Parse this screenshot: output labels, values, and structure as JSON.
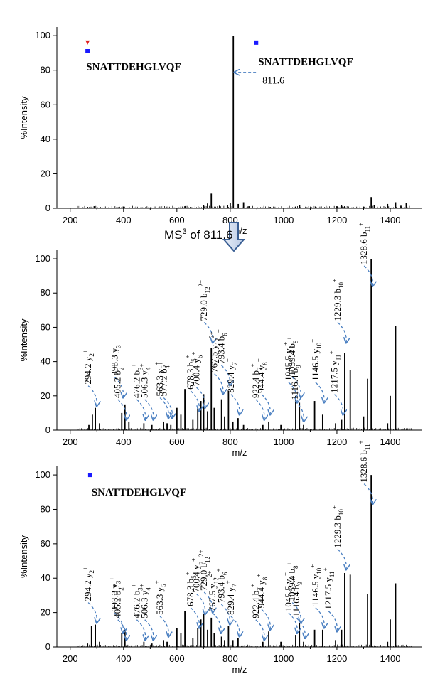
{
  "colors": {
    "arrow": "#4a7fc1",
    "bar": "#000000",
    "square": "#1a1aff",
    "triangle": "#e02020"
  },
  "ms3_label": {
    "prefix": "MS",
    "sup": "3",
    "suffix": " of 811.6"
  },
  "chart_data": [
    {
      "type": "bar",
      "xlabel": "m/z",
      "ylabel": "%Intensity",
      "xlim": [
        150,
        1520
      ],
      "ylim": [
        0,
        105
      ],
      "xticks": [
        200,
        400,
        600,
        800,
        1000,
        1200,
        1400
      ],
      "yticks": [
        0,
        20,
        40,
        60,
        80,
        100
      ],
      "peptide_labels": [
        {
          "text": "SNATTDEHGLVQF",
          "x": 260,
          "y": 80
        },
        {
          "text": "SNATTDEHGLVQF",
          "x": 905,
          "y": 83
        }
      ],
      "markers": [
        {
          "shape": "triangle",
          "x": 265,
          "y": 96
        },
        {
          "shape": "square",
          "x": 265,
          "y": 91
        },
        {
          "shape": "square",
          "x": 897,
          "y": 96
        }
      ],
      "precursor": {
        "text": "811.6",
        "x": 910,
        "y": 73
      },
      "peaks": [
        {
          "x": 265,
          "y": 0.8
        },
        {
          "x": 290,
          "y": 1.2
        },
        {
          "x": 380,
          "y": 0.6
        },
        {
          "x": 400,
          "y": 1.0
        },
        {
          "x": 560,
          "y": 0.7
        },
        {
          "x": 630,
          "y": 1.2
        },
        {
          "x": 700,
          "y": 2.0
        },
        {
          "x": 715,
          "y": 2.8
        },
        {
          "x": 729,
          "y": 8.5
        },
        {
          "x": 760,
          "y": 1.5
        },
        {
          "x": 790,
          "y": 2.0
        },
        {
          "x": 800,
          "y": 3.0
        },
        {
          "x": 811.6,
          "y": 100
        },
        {
          "x": 830,
          "y": 2.5
        },
        {
          "x": 850,
          "y": 3.5
        },
        {
          "x": 870,
          "y": 1.2
        },
        {
          "x": 950,
          "y": 0.8
        },
        {
          "x": 1045,
          "y": 1.0
        },
        {
          "x": 1060,
          "y": 1.8
        },
        {
          "x": 1120,
          "y": 0.8
        },
        {
          "x": 1200,
          "y": 1.2
        },
        {
          "x": 1217,
          "y": 2.0
        },
        {
          "x": 1229,
          "y": 1.2
        },
        {
          "x": 1300,
          "y": 1.0
        },
        {
          "x": 1328.6,
          "y": 6.5
        },
        {
          "x": 1340,
          "y": 2.0
        },
        {
          "x": 1390,
          "y": 2.5
        },
        {
          "x": 1420,
          "y": 3.5
        },
        {
          "x": 1440,
          "y": 1.5
        },
        {
          "x": 1460,
          "y": 3.0
        }
      ],
      "annotations": []
    },
    {
      "type": "bar",
      "xlabel": "m/z",
      "ylabel": "%Intensity",
      "xlim": [
        150,
        1520
      ],
      "ylim": [
        0,
        105
      ],
      "xticks": [
        200,
        400,
        600,
        800,
        1000,
        1200,
        1400
      ],
      "yticks": [
        0,
        20,
        40,
        60,
        80,
        100
      ],
      "peptide_labels": [],
      "markers": [],
      "precursor": null,
      "peaks": [
        {
          "x": 270,
          "y": 3
        },
        {
          "x": 283,
          "y": 9
        },
        {
          "x": 294.2,
          "y": 13
        },
        {
          "x": 310,
          "y": 4
        },
        {
          "x": 393.3,
          "y": 10
        },
        {
          "x": 405.2,
          "y": 15
        },
        {
          "x": 420,
          "y": 5
        },
        {
          "x": 476.2,
          "y": 4
        },
        {
          "x": 506.3,
          "y": 3
        },
        {
          "x": 550,
          "y": 5
        },
        {
          "x": 563.3,
          "y": 4
        },
        {
          "x": 577.2,
          "y": 3
        },
        {
          "x": 600,
          "y": 13
        },
        {
          "x": 615,
          "y": 9
        },
        {
          "x": 630,
          "y": 24
        },
        {
          "x": 660,
          "y": 6
        },
        {
          "x": 678.3,
          "y": 13
        },
        {
          "x": 690,
          "y": 17
        },
        {
          "x": 700.4,
          "y": 21
        },
        {
          "x": 715,
          "y": 11
        },
        {
          "x": 729.0,
          "y": 48
        },
        {
          "x": 740,
          "y": 13
        },
        {
          "x": 767.5,
          "y": 18
        },
        {
          "x": 779,
          "y": 8
        },
        {
          "x": 793.4,
          "y": 23
        },
        {
          "x": 810,
          "y": 5
        },
        {
          "x": 829.4,
          "y": 7
        },
        {
          "x": 850,
          "y": 3
        },
        {
          "x": 922.4,
          "y": 3
        },
        {
          "x": 944.4,
          "y": 5
        },
        {
          "x": 990,
          "y": 3
        },
        {
          "x": 1045.5,
          "y": 20
        },
        {
          "x": 1059.4,
          "y": 16
        },
        {
          "x": 1075,
          "y": 3
        },
        {
          "x": 1116.4,
          "y": 17
        },
        {
          "x": 1146.5,
          "y": 9
        },
        {
          "x": 1195,
          "y": 4
        },
        {
          "x": 1217.5,
          "y": 6
        },
        {
          "x": 1229.3,
          "y": 45
        },
        {
          "x": 1250,
          "y": 35
        },
        {
          "x": 1300,
          "y": 8
        },
        {
          "x": 1315,
          "y": 30
        },
        {
          "x": 1328.6,
          "y": 100
        },
        {
          "x": 1390,
          "y": 4
        },
        {
          "x": 1400,
          "y": 20
        },
        {
          "x": 1420,
          "y": 61
        }
      ],
      "annotations": [
        {
          "label": "294.2 y",
          "sub": "2",
          "sup": "+",
          "x": 294.2,
          "tip": 13
        },
        {
          "label": "393.3 y",
          "sub": "3",
          "sup": "+",
          "x": 393.3,
          "tip": 18
        },
        {
          "label": "405.2 b",
          "sub": "2",
          "sup": "+",
          "x": 405.2,
          "tip": 5
        },
        {
          "label": "476.2 b",
          "sub": "3",
          "sup": "+",
          "x": 476.2,
          "tip": 5
        },
        {
          "label": "506.3 y",
          "sub": "4",
          "sup": "+",
          "x": 506.3,
          "tip": 5
        },
        {
          "label": "563.3 y",
          "sub": "5",
          "sup": "+",
          "x": 563.3,
          "tip": 6
        },
        {
          "label": "577.2 b",
          "sub": "4",
          "sup": "+",
          "x": 577.2,
          "tip": 6
        },
        {
          "label": "678.3 b",
          "sub": "5",
          "sup": "+",
          "x": 678.3,
          "tip": 10
        },
        {
          "label": "700.4 y",
          "sub": "6",
          "sup": "+",
          "x": 700.4,
          "tip": 12
        },
        {
          "label": "729.0 b",
          "sub": "12",
          "sup": "2+",
          "x": 729.0,
          "tip": 50
        },
        {
          "label": "767.5 y",
          "sub": "12",
          "sup": "2+",
          "x": 767.5,
          "tip": 20
        },
        {
          "label": "793.4 b",
          "sub": "6",
          "sup": "+",
          "x": 793.4,
          "tip": 25
        },
        {
          "label": "829.4 y",
          "sub": "7",
          "sup": "+",
          "x": 829.4,
          "tip": 8
        },
        {
          "label": "922.4 b",
          "sub": "7",
          "sup": "+",
          "x": 922.4,
          "tip": 5
        },
        {
          "label": "944.4 y",
          "sub": "8",
          "sup": "+",
          "x": 944.4,
          "tip": 8
        },
        {
          "label": "1045.5 y",
          "sub": "9",
          "sup": "+",
          "x": 1045.5,
          "tip": 15
        },
        {
          "label": "1059.4 b",
          "sub": "8",
          "sup": "+",
          "x": 1059.4,
          "tip": 18
        },
        {
          "label": "1116.4 b",
          "sub": "9",
          "sup": "+",
          "x": 1070,
          "tip": 4
        },
        {
          "label": "1146.5 y",
          "sub": "10",
          "sup": "+",
          "x": 1146.5,
          "tip": 15
        },
        {
          "label": "1217.5 y",
          "sub": "11",
          "sup": "+",
          "x": 1217.5,
          "tip": 8
        },
        {
          "label": "1229.3 b",
          "sub": "10",
          "sup": "+",
          "x": 1229.3,
          "tip": 50
        },
        {
          "label": "1328.6 b",
          "sub": "11",
          "sup": "+",
          "x": 1328.6,
          "tip": 83
        }
      ]
    },
    {
      "type": "bar",
      "xlabel": "m/z",
      "ylabel": "%Intensity",
      "xlim": [
        150,
        1520
      ],
      "ylim": [
        0,
        105
      ],
      "xticks": [
        200,
        400,
        600,
        800,
        1000,
        1200,
        1400
      ],
      "yticks": [
        0,
        20,
        40,
        60,
        80,
        100
      ],
      "peptide_labels": [
        {
          "text": "SNATTDEHGLVQF",
          "x": 280,
          "y": 88
        }
      ],
      "markers": [
        {
          "shape": "square",
          "x": 275,
          "y": 100
        }
      ],
      "precursor": null,
      "peaks": [
        {
          "x": 265,
          "y": 2
        },
        {
          "x": 280,
          "y": 12
        },
        {
          "x": 294.2,
          "y": 13
        },
        {
          "x": 310,
          "y": 3
        },
        {
          "x": 393.3,
          "y": 8
        },
        {
          "x": 405.2,
          "y": 10
        },
        {
          "x": 476.2,
          "y": 3
        },
        {
          "x": 506.3,
          "y": 2
        },
        {
          "x": 550,
          "y": 4
        },
        {
          "x": 563.3,
          "y": 3
        },
        {
          "x": 600,
          "y": 11
        },
        {
          "x": 615,
          "y": 8
        },
        {
          "x": 630,
          "y": 21
        },
        {
          "x": 660,
          "y": 5
        },
        {
          "x": 678.3,
          "y": 11
        },
        {
          "x": 690,
          "y": 16
        },
        {
          "x": 700.4,
          "y": 19
        },
        {
          "x": 715,
          "y": 10
        },
        {
          "x": 729.0,
          "y": 17
        },
        {
          "x": 740,
          "y": 8
        },
        {
          "x": 767.5,
          "y": 6
        },
        {
          "x": 779,
          "y": 4
        },
        {
          "x": 793.4,
          "y": 12
        },
        {
          "x": 810,
          "y": 4
        },
        {
          "x": 829.4,
          "y": 5
        },
        {
          "x": 922.4,
          "y": 3
        },
        {
          "x": 944.4,
          "y": 9
        },
        {
          "x": 990,
          "y": 3
        },
        {
          "x": 1045.5,
          "y": 7
        },
        {
          "x": 1059.4,
          "y": 14
        },
        {
          "x": 1075,
          "y": 3
        },
        {
          "x": 1116.4,
          "y": 10
        },
        {
          "x": 1146.5,
          "y": 10
        },
        {
          "x": 1195,
          "y": 4
        },
        {
          "x": 1217.5,
          "y": 10
        },
        {
          "x": 1229.3,
          "y": 43
        },
        {
          "x": 1250,
          "y": 42
        },
        {
          "x": 1315,
          "y": 31
        },
        {
          "x": 1328.6,
          "y": 100
        },
        {
          "x": 1390,
          "y": 3
        },
        {
          "x": 1400,
          "y": 16
        },
        {
          "x": 1420,
          "y": 37
        }
      ],
      "annotations": [
        {
          "label": "294.2 y",
          "sub": "2",
          "sup": "+",
          "x": 294.2,
          "tip": 13
        },
        {
          "label": "393.3 y",
          "sub": "3",
          "sup": "+",
          "x": 393.3,
          "tip": 7
        },
        {
          "label": "405.2 b",
          "sub": "2",
          "sup": "+",
          "x": 405.2,
          "tip": 3
        },
        {
          "label": "476.2 b",
          "sub": "3",
          "sup": "+",
          "x": 476.2,
          "tip": 3
        },
        {
          "label": "506.3 y",
          "sub": "4",
          "sup": "+",
          "x": 506.3,
          "tip": 3
        },
        {
          "label": "563.3 y",
          "sub": "5",
          "sup": "+",
          "x": 563.3,
          "tip": 5
        },
        {
          "label": "678.3 b",
          "sub": "5",
          "sup": "+",
          "x": 678.3,
          "tip": 10
        },
        {
          "label": "700.4 y",
          "sub": "6",
          "sup": "+",
          "x": 700.4,
          "tip": 18
        },
        {
          "label": "729.0 b",
          "sub": "12",
          "sup": "2+",
          "x": 729.0,
          "tip": 19
        },
        {
          "label": "767.5 y",
          "sub": "12",
          "sup": "2+",
          "x": 760,
          "tip": 7
        },
        {
          "label": "793.4 b",
          "sub": "6",
          "sup": "+",
          "x": 793.4,
          "tip": 12
        },
        {
          "label": "829.4 y",
          "sub": "7",
          "sup": "+",
          "x": 829.4,
          "tip": 5
        },
        {
          "label": "922.4 b",
          "sub": "7",
          "sup": "+",
          "x": 922.4,
          "tip": 3
        },
        {
          "label": "944.4 y",
          "sub": "8",
          "sup": "+",
          "x": 944.4,
          "tip": 9
        },
        {
          "label": "1045.5 y",
          "sub": "9",
          "sup": "+",
          "x": 1045.5,
          "tip": 7
        },
        {
          "label": "1059.4 b",
          "sub": "8",
          "sup": "+",
          "x": 1059.4,
          "tip": 13
        },
        {
          "label": "1116.4 b",
          "sub": "9",
          "sup": "+",
          "x": 1075,
          "tip": 4
        },
        {
          "label": "1146.5 y",
          "sub": "10",
          "sup": "+",
          "x": 1146.5,
          "tip": 10
        },
        {
          "label": "1217.5 y",
          "sub": "11",
          "sup": "+",
          "x": 1195,
          "tip": 8
        },
        {
          "label": "1229.3 b",
          "sub": "10",
          "sup": "+",
          "x": 1229.3,
          "tip": 44
        },
        {
          "label": "1328.6 b",
          "sub": "11",
          "sup": "+",
          "x": 1328.6,
          "tip": 82
        }
      ]
    }
  ]
}
